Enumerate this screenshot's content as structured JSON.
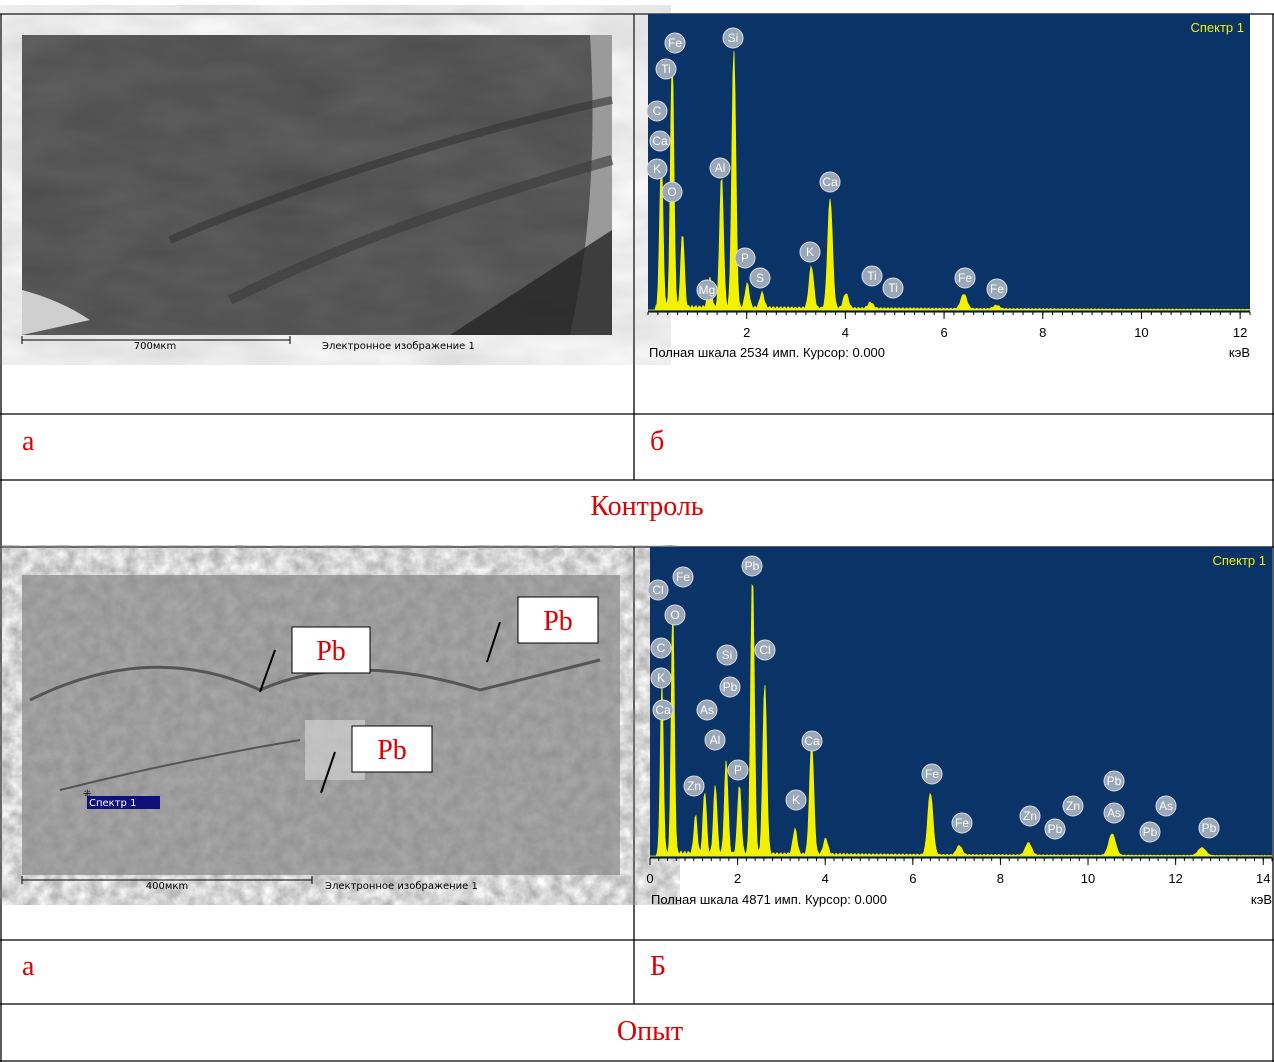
{
  "control": {
    "image": {
      "scale_label": "700мкm",
      "caption": "Электронное изображение 1"
    },
    "spectrum": {
      "title": "Спектр 1",
      "xlim": [
        0,
        12.2
      ],
      "xticks": [
        2,
        4,
        6,
        8,
        10,
        12
      ],
      "elements": [
        "Fe",
        "Si",
        "Ti",
        "C",
        "Ca",
        "K",
        "O",
        "Al",
        "Ca",
        "Mg",
        "P",
        "S",
        "K",
        "Ti",
        "Ti",
        "Fe",
        "Fe"
      ],
      "footer": "Полная шкала 2534 имп. Курсор: 0.000",
      "unit": "кэВ"
    },
    "label_left": "а",
    "label_right": "б",
    "caption": "Контроль"
  },
  "experiment": {
    "image": {
      "scale_label": "400мкm",
      "caption": "Электронное изображение 1",
      "spectrum_marker": "Спектр 1",
      "annotations": [
        "Pb",
        "Pb",
        "Pb"
      ]
    },
    "spectrum": {
      "title": "Спектр 1",
      "xlim": [
        0,
        14.2
      ],
      "xticks": [
        0,
        2,
        4,
        6,
        8,
        10,
        12,
        14
      ],
      "elements": [
        "Cl",
        "Fe",
        "Pb",
        "O",
        "C",
        "K",
        "Si",
        "Cl",
        "Pb",
        "Ca",
        "As",
        "Al",
        "Ca",
        "P",
        "Zn",
        "K",
        "Fe",
        "Fe",
        "Zn",
        "Pb",
        "Zn",
        "Pb",
        "As",
        "Pb",
        "As",
        "Pb"
      ],
      "footer": "Полная шкала 4871 имп. Курсор: 0.000",
      "unit": "кэВ"
    },
    "label_left": "а",
    "label_right": "Б",
    "caption": "Опыт"
  }
}
